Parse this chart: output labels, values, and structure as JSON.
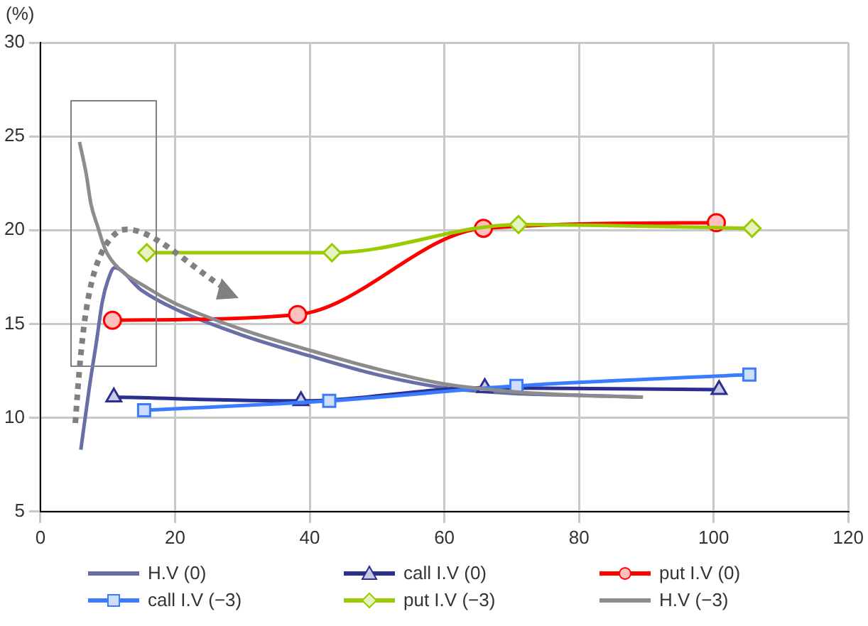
{
  "chart_data": {
    "type": "line",
    "ylabel": "(%)",
    "xlim": [
      0,
      120
    ],
    "xticks": [
      0,
      20,
      40,
      60,
      80,
      100,
      120
    ],
    "ylim": [
      5,
      30
    ],
    "yticks": [
      5,
      10,
      15,
      20,
      25,
      30
    ],
    "grid": true,
    "legend": "bottom",
    "line_style": "solid",
    "series": [
      {
        "name": "H.V (0)",
        "color": "#6a6ea6",
        "marker": "none",
        "x": [
          6,
          7.3,
          8.3,
          9.2,
          10,
          11,
          15,
          20,
          30,
          40,
          50,
          60,
          70,
          80,
          89
        ],
        "values": [
          8.3,
          11.7,
          14,
          16.2,
          17.3,
          18,
          16.8,
          15.8,
          14.4,
          13.3,
          12.3,
          11.6,
          11.3,
          11.2,
          11.1
        ]
      },
      {
        "name": "call I.V (0)",
        "color": "#2b2f8f",
        "marker": "triangle",
        "x": [
          10.9,
          38.7,
          66,
          100.8
        ],
        "values": [
          11.1,
          10.9,
          11.6,
          11.5
        ]
      },
      {
        "name": "put I.V (0)",
        "color": "#ff0000",
        "marker": "circle",
        "x": [
          10.7,
          38.2,
          65.8,
          100.4
        ],
        "values": [
          15.2,
          15.5,
          20.1,
          20.4
        ]
      },
      {
        "name": "call I.V (−3)",
        "color": "#3b7bff",
        "marker": "square",
        "x": [
          15.4,
          42.9,
          70.7,
          105.3
        ],
        "values": [
          10.4,
          10.9,
          11.7,
          12.3
        ]
      },
      {
        "name": "put I.V (−3)",
        "color": "#99cc00",
        "marker": "diamond",
        "x": [
          15.8,
          43.3,
          71,
          105.7
        ],
        "values": [
          18.8,
          18.8,
          20.3,
          20.1
        ]
      },
      {
        "name": "H.V (−3)",
        "color": "#8c8c8c",
        "marker": "none",
        "x": [
          5.8,
          6.8,
          7.5,
          8.5,
          9.6,
          11,
          16,
          20,
          30,
          40,
          50,
          60,
          70,
          80,
          89.5
        ],
        "values": [
          24.7,
          23,
          21.4,
          20.2,
          19,
          18.2,
          16.9,
          16.1,
          14.7,
          13.6,
          12.6,
          11.8,
          11.4,
          11.2,
          11.1
        ]
      }
    ]
  }
}
